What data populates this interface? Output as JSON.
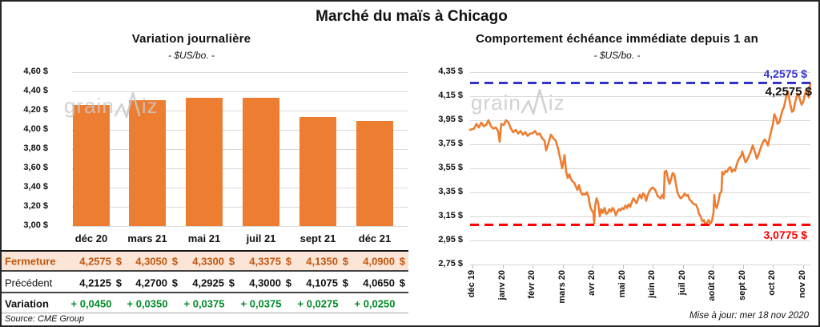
{
  "page": {
    "title": "Marché du maïs à Chicago",
    "source_note": "Source: CME Group",
    "update_note": "Mise à jour: mer 18 nov 2020",
    "watermark_left_part": "grain",
    "watermark_right_part": "iz",
    "colors": {
      "orange": "#ED7D31",
      "blue": "#3333CC",
      "red": "#FF0000",
      "green": "#008C28",
      "fermeture_text": "#C0560F",
      "fermeture_bg": "#FBE5D6",
      "grid": "#D9D9D9"
    }
  },
  "chart_data": [
    {
      "type": "bar",
      "title": "Variation journalière",
      "subtitle": "- $US/bo. -",
      "ylabel": "",
      "xlabel": "",
      "ylim": [
        3.0,
        4.6
      ],
      "ytick_step": 0.2,
      "ytick_labels": [
        "4,60 $",
        "4,40 $",
        "4,20 $",
        "4,00 $",
        "3,80 $",
        "3,60 $",
        "3,40 $",
        "3,20 $",
        "3,00 $"
      ],
      "grid": true,
      "categories": [
        "déc 20",
        "mars 21",
        "mai 21",
        "juil 21",
        "sept 21",
        "déc 21"
      ],
      "values": [
        4.2575,
        4.305,
        4.33,
        4.3375,
        4.135,
        4.09
      ],
      "currency": "$",
      "table_rows": [
        {
          "key": "fermeture",
          "label": "Fermeture",
          "values": [
            "4,2575",
            "4,3050",
            "4,3300",
            "4,3375",
            "4,1350",
            "4,0900"
          ],
          "accounting": true
        },
        {
          "key": "precedent",
          "label": "Précédent",
          "values": [
            "4,2125",
            "4,2700",
            "4,2925",
            "4,3000",
            "4,1075",
            "4,0650"
          ],
          "accounting": true
        },
        {
          "key": "variation",
          "label": "Variation",
          "values": [
            "+ 0,0450",
            "+ 0,0350",
            "+ 0,0375",
            "+ 0,0375",
            "+ 0,0275",
            "+ 0,0250"
          ],
          "accounting": false
        }
      ]
    },
    {
      "type": "line",
      "title": "Comportement échéance immédiate depuis 1 an",
      "subtitle": "- $US/bo. -",
      "ylim": [
        2.75,
        4.35
      ],
      "ytick_step": 0.2,
      "ytick_labels": [
        "4,35 $",
        "4,15 $",
        "3,95 $",
        "3,75 $",
        "3,55 $",
        "3,35 $",
        "3,15 $",
        "2,95 $",
        "2,75 $"
      ],
      "grid": true,
      "x_labels": [
        "déc 19",
        "janv 20",
        "févr 20",
        "mars 20",
        "avr 20",
        "mai 20",
        "juin 20",
        "juil 20",
        "août 20",
        "sept 20",
        "oct 20",
        "nov 20"
      ],
      "ref_top": {
        "value": 4.2575,
        "label": "4,2575 $"
      },
      "ref_bottom": {
        "value": 3.0775,
        "label": "3,0775 $"
      },
      "last_price_label": "4,2575 $",
      "points": [
        [
          0,
          3.87
        ],
        [
          5,
          3.88
        ],
        [
          8,
          3.92
        ],
        [
          11,
          3.89
        ],
        [
          14,
          3.93
        ],
        [
          17,
          3.9
        ],
        [
          20,
          3.91
        ],
        [
          23,
          3.95
        ],
        [
          26,
          3.9
        ],
        [
          29,
          3.88
        ],
        [
          32,
          3.89
        ],
        [
          35,
          3.86
        ],
        [
          37,
          3.77
        ],
        [
          39,
          3.92
        ],
        [
          42,
          3.91
        ],
        [
          45,
          3.95
        ],
        [
          48,
          3.93
        ],
        [
          51,
          3.88
        ],
        [
          54,
          3.85
        ],
        [
          57,
          3.87
        ],
        [
          60,
          3.84
        ],
        [
          63,
          3.86
        ],
        [
          66,
          3.83
        ],
        [
          69,
          3.85
        ],
        [
          72,
          3.82
        ],
        [
          75,
          3.84
        ],
        [
          78,
          3.84
        ],
        [
          81,
          3.86
        ],
        [
          84,
          3.83
        ],
        [
          87,
          3.84
        ],
        [
          90,
          3.8
        ],
        [
          93,
          3.78
        ],
        [
          95,
          3.7
        ],
        [
          98,
          3.76
        ],
        [
          101,
          3.83
        ],
        [
          104,
          3.8
        ],
        [
          107,
          3.78
        ],
        [
          110,
          3.71
        ],
        [
          113,
          3.62
        ],
        [
          115,
          3.55
        ],
        [
          117,
          3.62
        ],
        [
          118,
          3.66
        ],
        [
          120,
          3.52
        ],
        [
          122,
          3.47
        ],
        [
          124,
          3.5
        ],
        [
          126,
          3.46
        ],
        [
          128,
          3.44
        ],
        [
          130,
          3.43
        ],
        [
          132,
          3.4
        ],
        [
          134,
          3.37
        ],
        [
          136,
          3.41
        ],
        [
          138,
          3.36
        ],
        [
          140,
          3.33
        ],
        [
          142,
          3.34
        ],
        [
          144,
          3.33
        ],
        [
          146,
          3.35
        ],
        [
          148,
          3.31
        ],
        [
          150,
          3.23
        ],
        [
          152,
          3.2
        ],
        [
          154,
          3.18
        ],
        [
          155,
          3.09
        ],
        [
          156,
          3.23
        ],
        [
          158,
          3.3
        ],
        [
          160,
          3.26
        ],
        [
          162,
          3.15
        ],
        [
          164,
          3.21
        ],
        [
          166,
          3.18
        ],
        [
          168,
          3.22
        ],
        [
          170,
          3.17
        ],
        [
          172,
          3.18
        ],
        [
          174,
          3.21
        ],
        [
          176,
          3.19
        ],
        [
          178,
          3.22
        ],
        [
          180,
          3.2
        ],
        [
          182,
          3.16
        ],
        [
          184,
          3.19
        ],
        [
          186,
          3.21
        ],
        [
          188,
          3.2
        ],
        [
          190,
          3.22
        ],
        [
          192,
          3.21
        ],
        [
          194,
          3.24
        ],
        [
          196,
          3.22
        ],
        [
          198,
          3.25
        ],
        [
          200,
          3.23
        ],
        [
          202,
          3.27
        ],
        [
          204,
          3.3
        ],
        [
          206,
          3.28
        ],
        [
          208,
          3.26
        ],
        [
          210,
          3.3
        ],
        [
          212,
          3.33
        ],
        [
          214,
          3.3
        ],
        [
          216,
          3.34
        ],
        [
          218,
          3.33
        ],
        [
          220,
          3.28
        ],
        [
          222,
          3.33
        ],
        [
          224,
          3.36
        ],
        [
          226,
          3.38
        ],
        [
          228,
          3.39
        ],
        [
          230,
          3.38
        ],
        [
          232,
          3.36
        ],
        [
          234,
          3.32
        ],
        [
          236,
          3.31
        ],
        [
          238,
          3.3
        ],
        [
          240,
          3.33
        ],
        [
          242,
          3.3
        ],
        [
          243,
          3.52
        ],
        [
          245,
          3.53
        ],
        [
          247,
          3.47
        ],
        [
          249,
          3.42
        ],
        [
          251,
          3.46
        ],
        [
          253,
          3.51
        ],
        [
          255,
          3.5
        ],
        [
          257,
          3.42
        ],
        [
          259,
          3.35
        ],
        [
          261,
          3.32
        ],
        [
          263,
          3.3
        ],
        [
          265,
          3.31
        ],
        [
          268,
          3.34
        ],
        [
          270,
          3.32
        ],
        [
          272,
          3.33
        ],
        [
          274,
          3.29
        ],
        [
          276,
          3.28
        ],
        [
          278,
          3.26
        ],
        [
          280,
          3.25
        ],
        [
          282,
          3.25
        ],
        [
          284,
          3.22
        ],
        [
          286,
          3.17
        ],
        [
          288,
          3.15
        ],
        [
          290,
          3.11
        ],
        [
          292,
          3.12
        ],
        [
          294,
          3.08
        ],
        [
          296,
          3.1
        ],
        [
          298,
          3.12
        ],
        [
          300,
          3.09
        ],
        [
          302,
          3.11
        ],
        [
          304,
          3.18
        ],
        [
          305,
          3.33
        ],
        [
          306,
          3.25
        ],
        [
          308,
          3.22
        ],
        [
          310,
          3.27
        ],
        [
          312,
          3.34
        ],
        [
          314,
          3.36
        ],
        [
          315,
          3.52
        ],
        [
          317,
          3.5
        ],
        [
          319,
          3.53
        ],
        [
          321,
          3.52
        ],
        [
          323,
          3.55
        ],
        [
          325,
          3.56
        ],
        [
          327,
          3.52
        ],
        [
          329,
          3.54
        ],
        [
          331,
          3.53
        ],
        [
          333,
          3.58
        ],
        [
          335,
          3.62
        ],
        [
          337,
          3.64
        ],
        [
          339,
          3.66
        ],
        [
          340,
          3.69
        ],
        [
          342,
          3.64
        ],
        [
          344,
          3.6
        ],
        [
          346,
          3.62
        ],
        [
          348,
          3.65
        ],
        [
          350,
          3.68
        ],
        [
          352,
          3.72
        ],
        [
          353,
          3.74
        ],
        [
          355,
          3.7
        ],
        [
          357,
          3.66
        ],
        [
          358,
          3.63
        ],
        [
          360,
          3.66
        ],
        [
          362,
          3.7
        ],
        [
          364,
          3.74
        ],
        [
          366,
          3.77
        ],
        [
          368,
          3.79
        ],
        [
          370,
          3.77
        ],
        [
          372,
          3.74
        ],
        [
          374,
          3.8
        ],
        [
          376,
          3.86
        ],
        [
          378,
          3.91
        ],
        [
          380,
          4.0
        ],
        [
          382,
          3.97
        ],
        [
          384,
          3.92
        ],
        [
          386,
          3.93
        ],
        [
          388,
          3.98
        ],
        [
          390,
          4.03
        ],
        [
          392,
          4.06
        ],
        [
          394,
          4.12
        ],
        [
          396,
          4.18
        ],
        [
          397,
          4.19
        ],
        [
          398,
          4.15
        ],
        [
          400,
          4.08
        ],
        [
          402,
          4.02
        ],
        [
          404,
          4.03
        ],
        [
          406,
          4.1
        ],
        [
          408,
          4.15
        ],
        [
          410,
          4.17
        ],
        [
          412,
          4.12
        ],
        [
          414,
          4.08
        ],
        [
          416,
          4.1
        ],
        [
          418,
          4.16
        ],
        [
          420,
          4.21
        ],
        [
          422,
          4.17
        ],
        [
          423,
          4.14
        ],
        [
          424,
          4.2
        ],
        [
          425,
          4.2575
        ]
      ]
    }
  ]
}
